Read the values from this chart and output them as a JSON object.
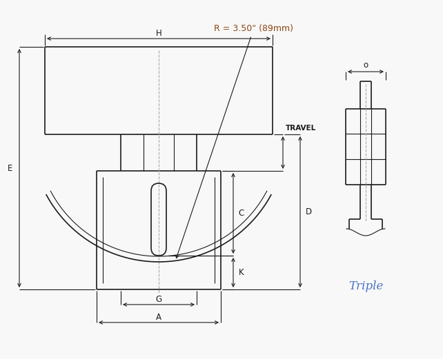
{
  "bg_color": "#f8f8f8",
  "line_color": "#1a1a1a",
  "dim_color": "#1a1a1a",
  "radius_label_color": "#8B4513",
  "triple_color": "#4472c4",
  "radius_text": "R = 3.50\" (89mm)",
  "label_H": "H",
  "label_E": "E",
  "label_C": "C",
  "label_D": "D",
  "label_K": "K",
  "label_G": "G",
  "label_A": "A",
  "label_O": "o",
  "label_travel": "TRAVEL",
  "label_triple": "Triple",
  "font_size_labels": 8.5,
  "font_size_radius": 9,
  "font_size_triple": 12
}
